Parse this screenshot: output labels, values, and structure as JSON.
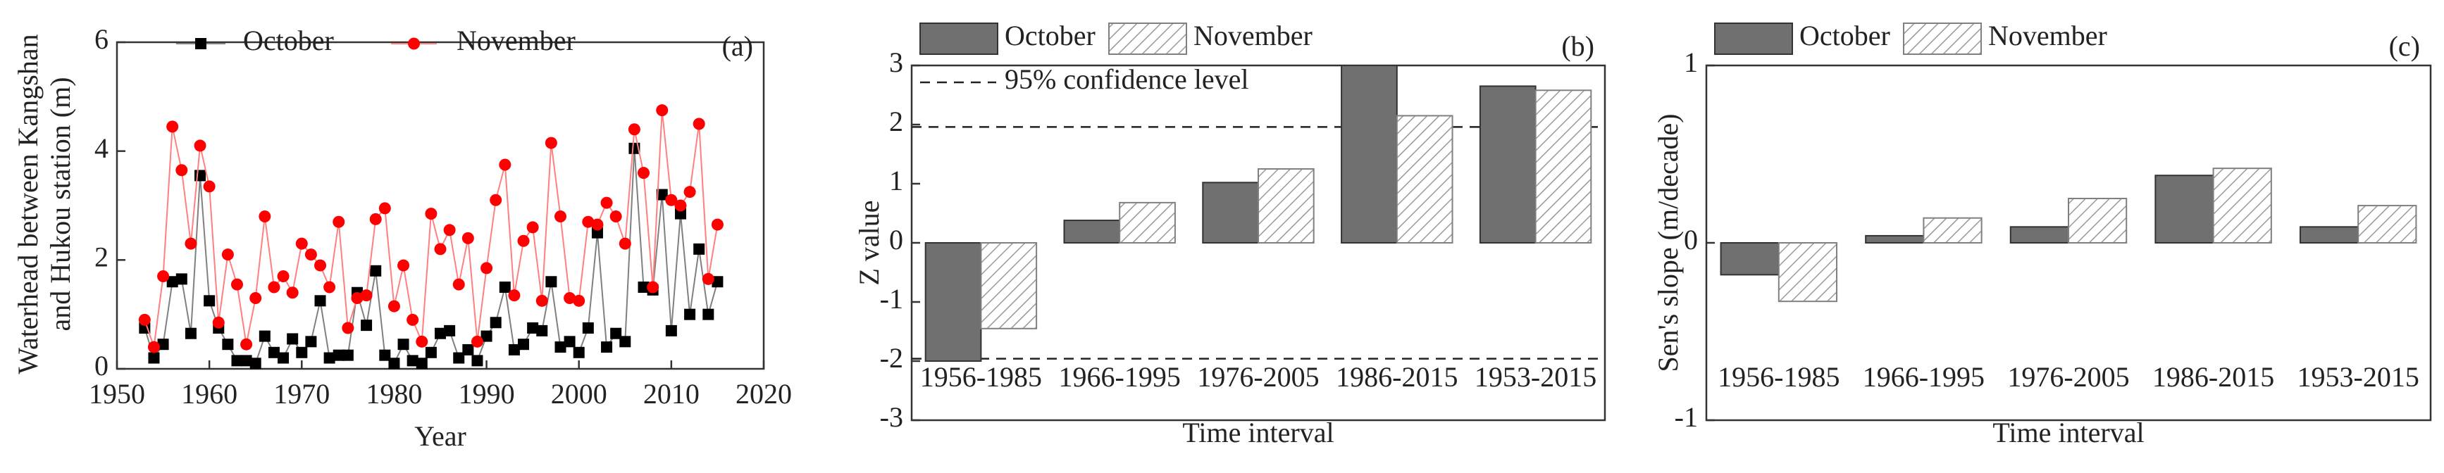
{
  "chart_data": [
    {
      "type": "line",
      "label": "(a)",
      "xlabel": "Year",
      "ylabel": [
        "Waterhead between Kangshan",
        "and Hukou station (m)"
      ],
      "x": [
        1953,
        1954,
        1955,
        1956,
        1957,
        1958,
        1959,
        1960,
        1961,
        1962,
        1963,
        1964,
        1965,
        1966,
        1967,
        1968,
        1969,
        1970,
        1971,
        1972,
        1973,
        1974,
        1975,
        1976,
        1977,
        1978,
        1979,
        1980,
        1981,
        1982,
        1983,
        1984,
        1985,
        1986,
        1987,
        1988,
        1989,
        1990,
        1991,
        1992,
        1993,
        1994,
        1995,
        1996,
        1997,
        1998,
        1999,
        2000,
        2001,
        2002,
        2003,
        2004,
        2005,
        2006,
        2007,
        2008,
        2009,
        2010,
        2011,
        2012,
        2013,
        2014,
        2015
      ],
      "series": [
        {
          "name": "October",
          "color": "#000000",
          "line_color": "#808080",
          "marker": "square",
          "values": [
            0.75,
            0.2,
            0.45,
            1.6,
            1.65,
            0.65,
            3.55,
            1.25,
            0.75,
            0.45,
            0.15,
            0.15,
            0.1,
            0.6,
            0.3,
            0.2,
            0.55,
            0.3,
            0.5,
            1.25,
            0.2,
            0.25,
            0.25,
            1.4,
            0.8,
            1.8,
            0.25,
            0.1,
            0.45,
            0.15,
            0.1,
            0.3,
            0.65,
            0.7,
            0.2,
            0.35,
            0.15,
            0.6,
            0.85,
            1.5,
            0.35,
            0.45,
            0.75,
            0.7,
            1.6,
            0.4,
            0.5,
            0.3,
            0.75,
            2.5,
            0.4,
            0.65,
            0.5,
            4.05,
            1.5,
            1.45,
            3.2,
            0.7,
            2.85,
            1.0,
            2.2,
            1.0,
            1.6
          ]
        },
        {
          "name": "November",
          "color": "#ff0000",
          "line_color": "#ff8080",
          "marker": "circle",
          "values": [
            0.9,
            0.4,
            1.7,
            4.45,
            3.65,
            2.3,
            4.1,
            3.35,
            0.85,
            2.1,
            1.55,
            0.45,
            1.3,
            2.8,
            1.5,
            1.7,
            1.4,
            2.3,
            2.1,
            1.9,
            1.5,
            2.7,
            0.75,
            1.3,
            1.35,
            2.75,
            2.95,
            1.15,
            1.9,
            0.9,
            0.5,
            2.85,
            2.2,
            2.55,
            1.55,
            2.4,
            0.5,
            1.85,
            3.1,
            3.75,
            1.35,
            2.35,
            2.6,
            1.25,
            4.15,
            2.8,
            1.3,
            1.25,
            2.7,
            2.65,
            3.05,
            2.8,
            2.3,
            4.4,
            3.6,
            1.5,
            4.75,
            3.1,
            3.0,
            3.25,
            4.5,
            1.65,
            2.65
          ]
        }
      ],
      "xlim": [
        1950,
        2020
      ],
      "xticks": [
        1950,
        1960,
        1970,
        1980,
        1990,
        2000,
        2010,
        2020
      ],
      "ylim": [
        0,
        6
      ],
      "yticks": [
        0,
        2,
        4,
        6
      ]
    },
    {
      "type": "bar",
      "label": "(b)",
      "xlabel": "Time interval",
      "ylabel": "Z value",
      "categories": [
        "1956-1985",
        "1966-1995",
        "1976-2005",
        "1986-2015",
        "1953-2015"
      ],
      "series": [
        {
          "name": "October",
          "color": "#707070",
          "pattern": "solid",
          "values": [
            -2.0,
            0.38,
            1.02,
            3.0,
            2.65
          ]
        },
        {
          "name": "November",
          "color": "#808080",
          "pattern": "hatch",
          "values": [
            -1.45,
            0.68,
            1.25,
            2.15,
            2.58
          ]
        }
      ],
      "reference": {
        "name": "95% confidence level",
        "values": [
          1.96,
          -1.96
        ]
      },
      "ylim": [
        -3,
        3
      ],
      "yticks": [
        -3,
        -2,
        -1,
        0,
        1,
        2,
        3
      ]
    },
    {
      "type": "bar",
      "label": "(c)",
      "xlabel": "Time interval",
      "ylabel": "Sen's slope (m/decade)",
      "categories": [
        "1956-1985",
        "1966-1995",
        "1976-2005",
        "1986-2015",
        "1953-2015"
      ],
      "series": [
        {
          "name": "October",
          "color": "#707070",
          "pattern": "solid",
          "values": [
            -0.18,
            0.04,
            0.09,
            0.38,
            0.09
          ]
        },
        {
          "name": "November",
          "color": "#808080",
          "pattern": "hatch",
          "values": [
            -0.33,
            0.14,
            0.25,
            0.42,
            0.21
          ]
        }
      ],
      "ylim": [
        -1,
        1
      ],
      "yticks": [
        -1,
        0,
        1
      ]
    }
  ]
}
